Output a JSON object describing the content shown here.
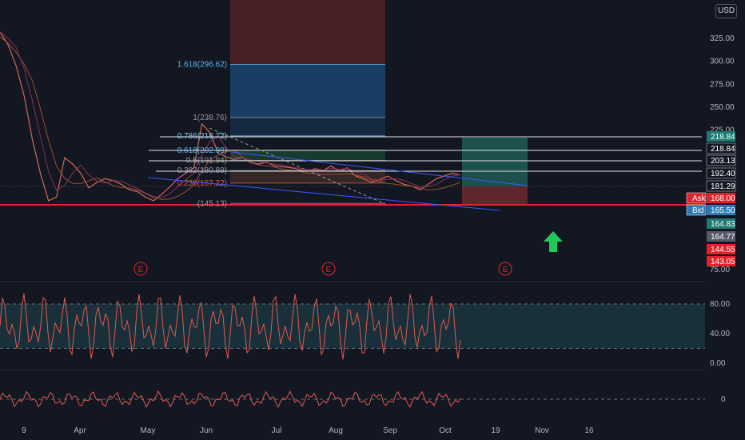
{
  "currency": "USD",
  "colors": {
    "background": "#131722",
    "price_line": "#d0685a",
    "ma_line": "#9b4e2f",
    "ma_fast": "#8a2f5a",
    "osc_line": "#e05a4e",
    "grid": "#1c2030",
    "fib_bull_blue": "#1d4c7a",
    "fib_red": "#5b2326",
    "target_green": "#1f5c55",
    "stop_red": "#6b2a2e",
    "red_level": "#e0232a",
    "teal_tag": "#26a69a",
    "blue_tag": "#2962ff",
    "arrow": "#22c55e"
  },
  "chart_data": [
    {
      "type": "line",
      "panel": "price",
      "title": "",
      "y_ticks": [
        "325.00",
        "300.00",
        "275.00",
        "250.00",
        "225.00",
        "75.00"
      ],
      "y_tick_values": [
        325,
        300,
        275,
        250,
        225,
        75
      ],
      "ylim": [
        75,
        350
      ],
      "x_ticks": [
        "9",
        "Apr",
        "May",
        "Jun",
        "Jul",
        "Aug",
        "Sep",
        "Oct",
        "19",
        "Nov",
        "16"
      ],
      "fib_levels": [
        {
          "label": "1.618(296.62)",
          "value": 296.62,
          "color": "#5fb4ea"
        },
        {
          "label": "1(238.76)",
          "value": 238.76,
          "color": "#9598a1"
        },
        {
          "label": "0.786(218.72)",
          "value": 218.72,
          "color": "#7fc4f0"
        },
        {
          "label": "0.618(202.98)",
          "value": 202.98,
          "color": "#5fb4ea"
        },
        {
          "label": "0.5(191.94)",
          "value": 191.94,
          "color": "#9598a1"
        },
        {
          "label": "0.382(180.89)",
          "value": 180.89,
          "color": "#9598a1"
        },
        {
          "label": "0.236(167.22)",
          "value": 167.22,
          "color": "#e05a4e"
        },
        {
          "label": "(145.13)",
          "value": 145.13,
          "color": "#9598a1"
        }
      ],
      "price_tags": [
        {
          "label": "218.84",
          "value": 218.84,
          "style": "teal"
        },
        {
          "label": "218.84",
          "value": 218.84,
          "style": "dark"
        },
        {
          "label": "203.13",
          "value": 203.13,
          "style": "dark"
        },
        {
          "label": "192.40",
          "value": 192.4,
          "style": "dark"
        },
        {
          "label": "181.29",
          "value": 181.29,
          "style": "dark"
        },
        {
          "label": "168.00",
          "value": 168.0,
          "style": "red",
          "prefix": "Ask"
        },
        {
          "label": "165.50",
          "value": 165.5,
          "style": "blue",
          "prefix": "Bid"
        },
        {
          "label": "164.83",
          "value": 164.83,
          "style": "teal"
        },
        {
          "label": "164.77",
          "value": 164.77,
          "style": "gray"
        },
        {
          "label": "144.55",
          "value": 144.55,
          "style": "red"
        },
        {
          "label": "143.05",
          "value": 143.05,
          "style": "red"
        }
      ],
      "earnings_markers": [
        "E",
        "E",
        "E"
      ],
      "series": [
        {
          "x": [
            0,
            1,
            2,
            3,
            4,
            5,
            6,
            7,
            8,
            9,
            10,
            11,
            12,
            13,
            14,
            15,
            16,
            17,
            18,
            19,
            20,
            21,
            22,
            23,
            24,
            25,
            26,
            27,
            28,
            29,
            30,
            31,
            32,
            33,
            34,
            35,
            36,
            37,
            38,
            39,
            40,
            41,
            42,
            43,
            44,
            45,
            46,
            47,
            48,
            49,
            50,
            51,
            52,
            53,
            54,
            55,
            56,
            57
          ],
          "values": [
            332,
            318,
            295,
            262,
            215,
            178,
            148,
            152,
            195,
            188,
            178,
            162,
            168,
            172,
            170,
            166,
            160,
            158,
            152,
            148,
            155,
            163,
            172,
            178,
            184,
            232,
            222,
            200,
            196,
            193,
            195,
            190,
            188,
            190,
            186,
            185,
            184,
            182,
            180,
            183,
            181,
            186,
            180,
            184,
            175,
            172,
            168,
            171,
            175,
            170,
            166,
            164,
            160,
            166,
            172,
            175,
            178,
            176
          ]
        }
      ]
    },
    {
      "type": "line",
      "panel": "oscillator",
      "y_ticks": [
        "80.00",
        "40.00",
        "0.00"
      ],
      "y_tick_values": [
        80,
        40,
        0
      ],
      "ylim": [
        0,
        100
      ],
      "band": [
        20,
        80
      ]
    },
    {
      "type": "line",
      "panel": "momentum",
      "y_ticks": [
        "0"
      ],
      "y_tick_values": [
        0
      ]
    }
  ]
}
